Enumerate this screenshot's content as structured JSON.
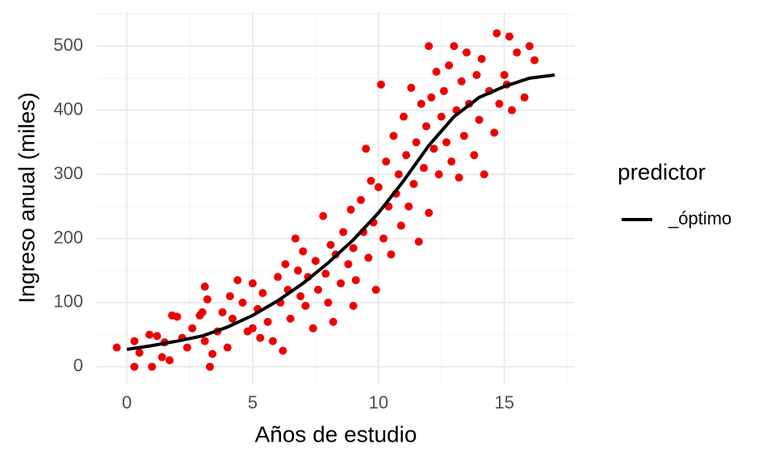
{
  "chart_data": {
    "type": "scatter",
    "x_label": "Años de estudio",
    "y_label": "Ingreso anual (miles)",
    "legend_title": "predictor",
    "xlim": [
      -1.19,
      17.8
    ],
    "ylim": [
      -26,
      553
    ],
    "xticks": [
      0,
      5,
      10,
      15
    ],
    "yticks": [
      0,
      100,
      200,
      300,
      400,
      500
    ],
    "grid": true,
    "legend_position": "right",
    "series": [
      {
        "type": "points",
        "color": "#ee0000",
        "x": [
          -0.4,
          0.3,
          0.3,
          0.5,
          0.9,
          1.0,
          1.2,
          1.4,
          1.5,
          1.7,
          1.8,
          2.0,
          2.2,
          2.4,
          2.6,
          2.9,
          3.0,
          3.1,
          3.1,
          3.2,
          3.3,
          3.4,
          3.6,
          3.8,
          4.0,
          4.1,
          4.2,
          4.4,
          4.6,
          4.8,
          5.0,
          5.0,
          5.2,
          5.3,
          5.4,
          5.6,
          5.8,
          6.0,
          6.1,
          6.2,
          6.3,
          6.4,
          6.5,
          6.7,
          6.8,
          6.9,
          7.0,
          7.1,
          7.2,
          7.4,
          7.5,
          7.6,
          7.8,
          7.9,
          8.0,
          8.1,
          8.2,
          8.3,
          8.5,
          8.6,
          8.8,
          8.9,
          9.0,
          9.0,
          9.1,
          9.3,
          9.4,
          9.5,
          9.6,
          9.7,
          9.8,
          9.9,
          10.0,
          10.1,
          10.2,
          10.3,
          10.4,
          10.5,
          10.6,
          10.7,
          10.8,
          10.9,
          11.0,
          11.1,
          11.2,
          11.3,
          11.4,
          11.5,
          11.6,
          11.7,
          11.8,
          11.9,
          12.0,
          12.0,
          12.1,
          12.2,
          12.3,
          12.4,
          12.5,
          12.6,
          12.7,
          12.8,
          12.9,
          13.0,
          13.1,
          13.2,
          13.3,
          13.4,
          13.5,
          13.6,
          13.8,
          13.9,
          14.0,
          14.1,
          14.2,
          14.4,
          14.6,
          14.7,
          14.8,
          15.0,
          15.1,
          15.2,
          15.3,
          15.5,
          15.8,
          16.0,
          16.2
        ],
        "y": [
          30,
          0,
          40,
          22,
          50,
          0,
          48,
          15,
          38,
          10,
          80,
          78,
          45,
          30,
          60,
          80,
          85,
          40,
          125,
          105,
          0,
          20,
          55,
          85,
          30,
          110,
          75,
          135,
          100,
          55,
          60,
          130,
          90,
          45,
          115,
          70,
          40,
          140,
          100,
          25,
          160,
          120,
          75,
          200,
          150,
          110,
          180,
          95,
          140,
          60,
          165,
          120,
          235,
          145,
          100,
          190,
          70,
          175,
          130,
          210,
          160,
          245,
          95,
          185,
          135,
          260,
          210,
          340,
          170,
          290,
          225,
          120,
          280,
          440,
          200,
          320,
          250,
          175,
          360,
          270,
          300,
          220,
          390,
          330,
          250,
          435,
          285,
          350,
          195,
          410,
          310,
          375,
          500,
          240,
          420,
          340,
          460,
          300,
          390,
          430,
          350,
          470,
          320,
          500,
          400,
          295,
          445,
          360,
          490,
          410,
          330,
          455,
          385,
          480,
          300,
          430,
          365,
          520,
          410,
          455,
          440,
          515,
          400,
          490,
          420,
          500,
          478
        ]
      },
      {
        "type": "line",
        "name": "_óptimo",
        "color": "#000000",
        "x": [
          0,
          1,
          2,
          3,
          4,
          5,
          6,
          7,
          8,
          9,
          10,
          11,
          12,
          13,
          14,
          15,
          16,
          17
        ],
        "y": [
          27,
          33,
          40,
          48,
          62,
          80,
          103,
          130,
          162,
          198,
          240,
          290,
          345,
          390,
          420,
          437,
          450,
          455
        ]
      }
    ]
  }
}
